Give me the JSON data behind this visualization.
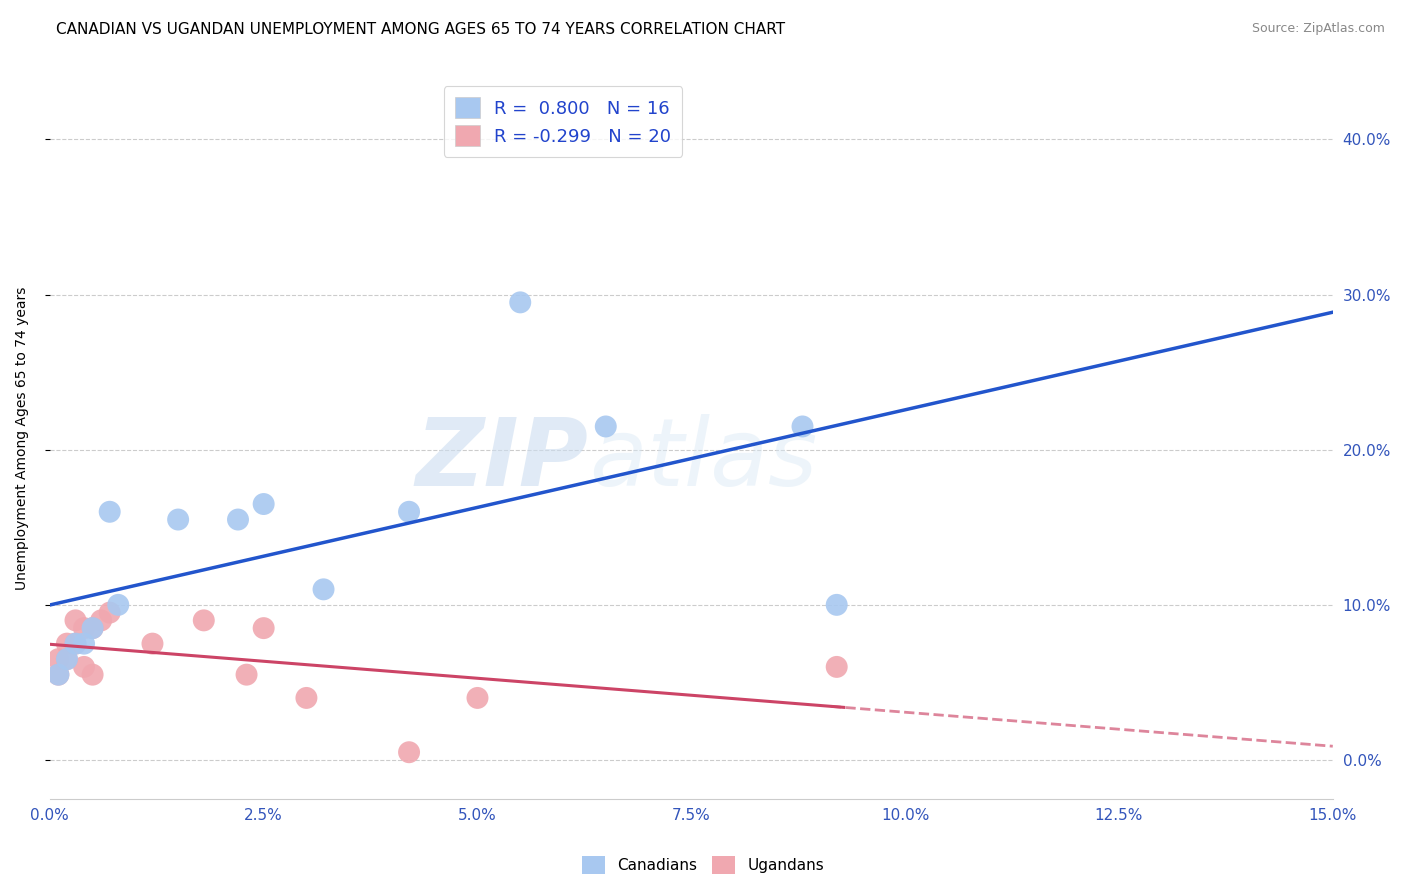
{
  "title": "CANADIAN VS UGANDAN UNEMPLOYMENT AMONG AGES 65 TO 74 YEARS CORRELATION CHART",
  "source": "Source: ZipAtlas.com",
  "ylabel": "Unemployment Among Ages 65 to 74 years",
  "xlim": [
    0.0,
    0.15
  ],
  "ylim": [
    -0.025,
    0.44
  ],
  "xticks": [
    0.0,
    0.025,
    0.05,
    0.075,
    0.1,
    0.125,
    0.15
  ],
  "yticks": [
    0.0,
    0.1,
    0.2,
    0.3,
    0.4
  ],
  "canadian_color": "#a8c8f0",
  "canadian_line_color": "#2255CC",
  "ugandan_color": "#f0a8b0",
  "ugandan_line_color": "#cc4466",
  "R_canadian": 0.8,
  "N_canadian": 16,
  "R_ugandan": -0.299,
  "N_ugandan": 20,
  "canadian_x": [
    0.001,
    0.002,
    0.003,
    0.004,
    0.005,
    0.007,
    0.008,
    0.015,
    0.022,
    0.025,
    0.032,
    0.042,
    0.055,
    0.065,
    0.088,
    0.092
  ],
  "canadian_y": [
    0.055,
    0.065,
    0.075,
    0.075,
    0.085,
    0.16,
    0.1,
    0.155,
    0.155,
    0.165,
    0.11,
    0.16,
    0.295,
    0.215,
    0.215,
    0.1
  ],
  "ugandan_x": [
    0.001,
    0.001,
    0.002,
    0.002,
    0.003,
    0.003,
    0.004,
    0.004,
    0.005,
    0.005,
    0.006,
    0.007,
    0.012,
    0.018,
    0.023,
    0.025,
    0.03,
    0.042,
    0.05,
    0.092
  ],
  "ugandan_y": [
    0.055,
    0.065,
    0.065,
    0.075,
    0.075,
    0.09,
    0.085,
    0.06,
    0.085,
    0.055,
    0.09,
    0.095,
    0.075,
    0.09,
    0.055,
    0.085,
    0.04,
    0.005,
    0.04,
    0.06
  ],
  "watermark_zip": "ZIP",
  "watermark_atlas": "atlas",
  "background_color": "#ffffff",
  "grid_color": "#cccccc",
  "title_fontsize": 11,
  "label_fontsize": 10,
  "tick_fontsize": 11,
  "legend_fontsize": 13,
  "marker_size": 250
}
